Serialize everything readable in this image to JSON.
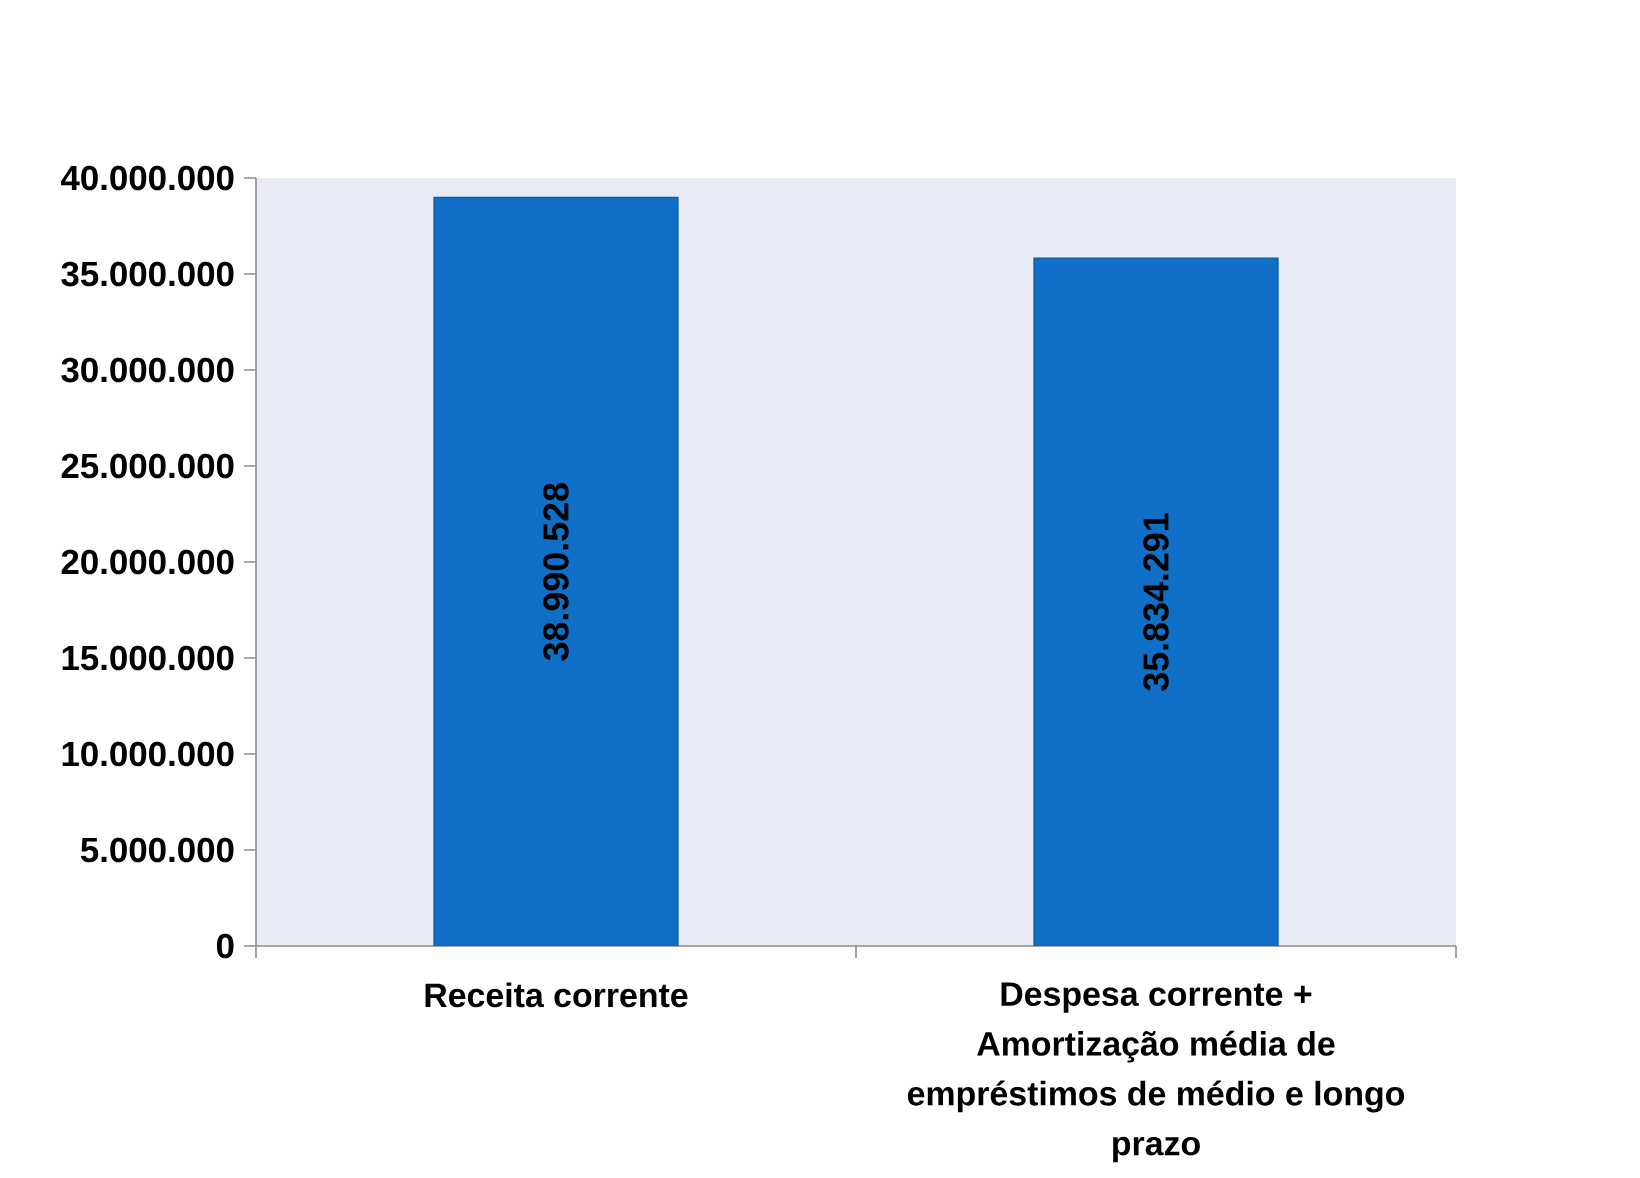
{
  "chart_data": {
    "type": "bar",
    "categories": [
      "Receita corrente",
      "Despesa corrente + Amortização média de empréstimos de médio e longo prazo"
    ],
    "values": [
      38990528,
      35834291
    ],
    "value_labels": [
      "38.990.528",
      "35.834.291"
    ],
    "color": "#1070c8",
    "ylim": [
      0,
      40000000
    ],
    "yticks": [
      0,
      {
        "value": 5000000,
        "label": "5.000.000"
      },
      {
        "value": 10000000,
        "label": "10.000.000"
      },
      {
        "value": 15000000,
        "label": "15.000.000"
      },
      {
        "value": 20000000,
        "label": "20.000.000"
      },
      {
        "value": 25000000,
        "label": "25.000.000"
      },
      {
        "value": 30000000,
        "label": "30.000.000"
      },
      {
        "value": 35000000,
        "label": "35.000.000"
      },
      {
        "value": 40000000,
        "label": "40.000.000"
      }
    ]
  }
}
